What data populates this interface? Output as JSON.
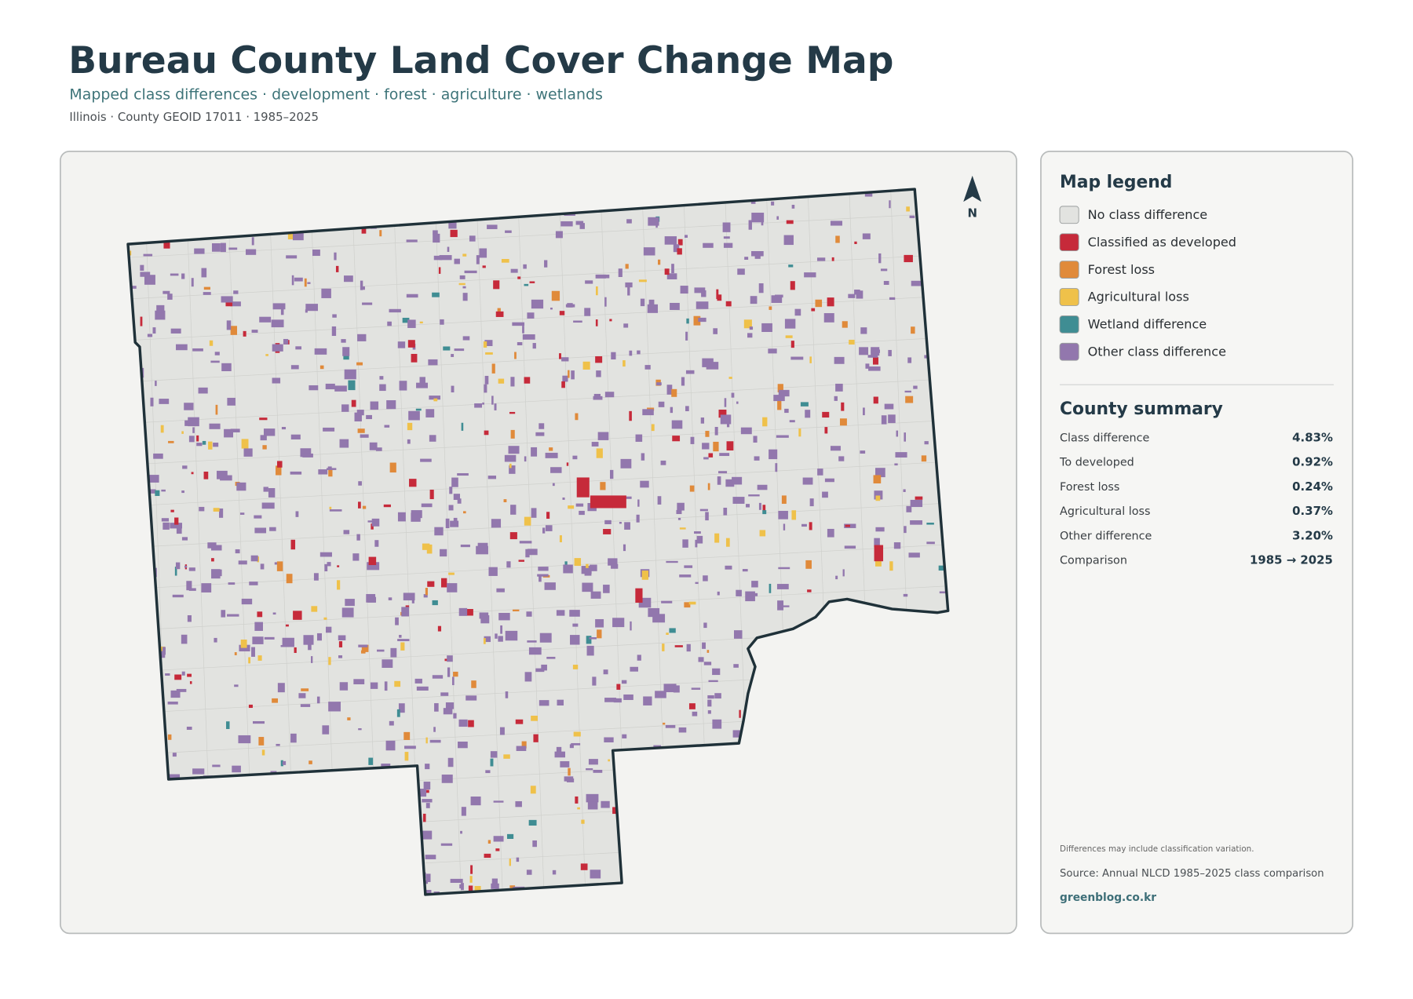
{
  "header": {
    "title": "Bureau County Land Cover Change Map",
    "subtitle": "Mapped class differences · development · forest · agriculture · wetlands",
    "meta": "Illinois · County GEOID 17011 · 1985–2025"
  },
  "map": {
    "north_label": "N"
  },
  "legend": {
    "title": "Map legend",
    "items": [
      {
        "label": "No class difference",
        "color": "#e2e3e0"
      },
      {
        "label": "Classified as developed",
        "color": "#c62a3a"
      },
      {
        "label": "Forest loss",
        "color": "#e08a3a"
      },
      {
        "label": "Agricultural loss",
        "color": "#efc14a"
      },
      {
        "label": "Wetland difference",
        "color": "#3f8d93"
      },
      {
        "label": "Other class difference",
        "color": "#9277ad"
      }
    ]
  },
  "summary": {
    "title": "County summary",
    "rows": [
      [
        "Class difference",
        "4.83%"
      ],
      [
        "To developed",
        "0.92%"
      ],
      [
        "Forest loss",
        "0.24%"
      ],
      [
        "Agricultural loss",
        "0.37%"
      ],
      [
        "Other difference",
        "3.20%"
      ],
      [
        "Comparison",
        "1985 → 2025"
      ]
    ]
  },
  "footer": {
    "note": "Differences may include classification variation.",
    "source": "Source: Annual NLCD 1985–2025 class comparison",
    "site": "greenblog.co.kr"
  }
}
